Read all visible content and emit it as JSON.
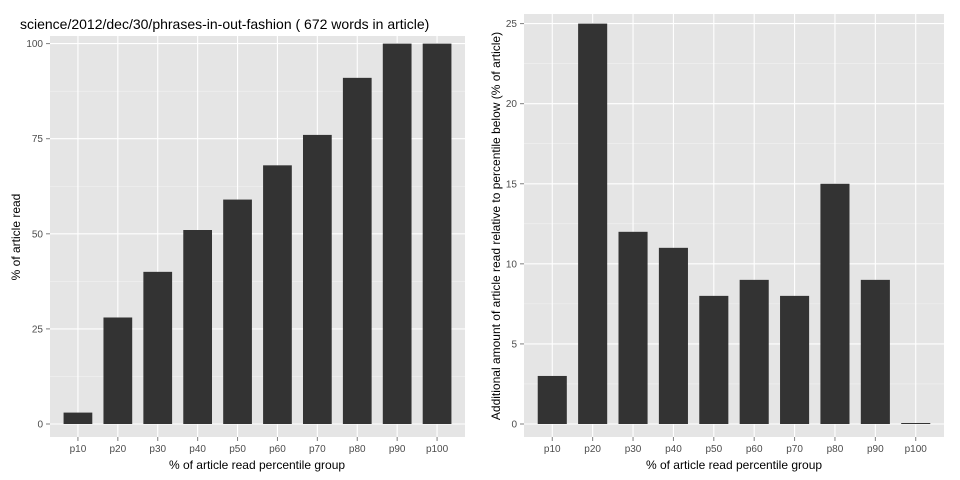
{
  "chart_data": [
    {
      "type": "bar",
      "title": "science/2012/dec/30/phrases-in-out-fashion ( 672 words in article)",
      "xlabel": "% of article read percentile group",
      "ylabel": "% of article read",
      "categories": [
        "p10",
        "p20",
        "p30",
        "p40",
        "p50",
        "p60",
        "p70",
        "p80",
        "p90",
        "p100"
      ],
      "values": [
        3,
        28,
        40,
        51,
        59,
        68,
        76,
        91,
        100,
        100
      ],
      "ylim": [
        0,
        102
      ],
      "yticks": [
        0,
        25,
        50,
        75,
        100
      ],
      "grid": true,
      "bar_color": "#333333",
      "panel_color": "#e5e5e5"
    },
    {
      "type": "bar",
      "title": "",
      "xlabel": "% of article read percentile group",
      "ylabel": "Additional amount of article read relative to percentile below (% of article)",
      "categories": [
        "p10",
        "p20",
        "p30",
        "p40",
        "p50",
        "p60",
        "p70",
        "p80",
        "p90",
        "p100"
      ],
      "values": [
        3,
        25,
        12,
        11,
        8,
        9,
        8,
        15,
        9,
        0
      ],
      "ylim": [
        0,
        25.6
      ],
      "yticks": [
        0,
        5,
        10,
        15,
        20,
        25
      ],
      "grid": true,
      "bar_color": "#333333",
      "panel_color": "#e5e5e5"
    }
  ]
}
